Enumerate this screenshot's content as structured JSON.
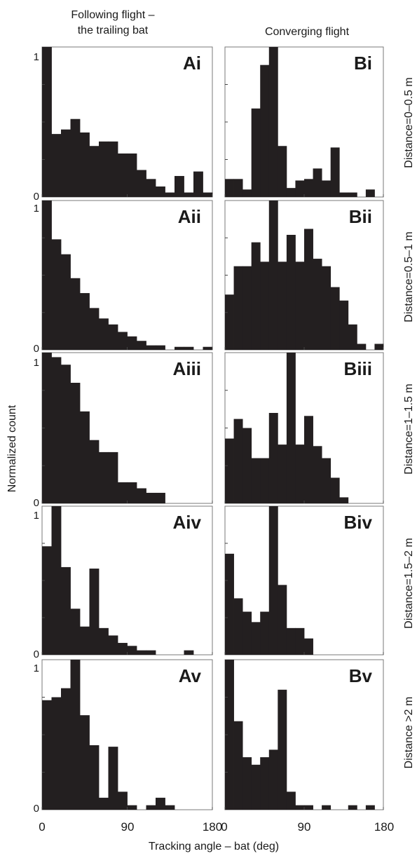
{
  "figure": {
    "col_headers": [
      [
        "Following flight –",
        "the trailing bat"
      ],
      [
        "Converging flight"
      ]
    ],
    "y_axis_label": "Normalized count",
    "x_axis_label": "Tracking angle – bat (deg)",
    "x_ticks": [
      "0",
      "90",
      "180"
    ],
    "y_ticks": [
      "0",
      "1"
    ],
    "row_labels": [
      "Distance=0–0.5 m",
      "Distance=0.5–1 m",
      "Distance=1–1.5 m",
      "Distance=1.5–2 m",
      "Distance >2 m"
    ],
    "colors": {
      "bar": "#231f20",
      "frame": "#7a7a7a"
    }
  },
  "chart_data": [
    {
      "type": "bar",
      "label": "Ai",
      "bin_width_deg": 10,
      "xlim": [
        0,
        180
      ],
      "ylim": [
        0,
        1
      ],
      "values": [
        1.0,
        0.42,
        0.45,
        0.52,
        0.43,
        0.34,
        0.37,
        0.37,
        0.29,
        0.29,
        0.18,
        0.12,
        0.07,
        0.03,
        0.14,
        0.03,
        0.17,
        0.03
      ]
    },
    {
      "type": "bar",
      "label": "Bi",
      "bin_width_deg": 10,
      "xlim": [
        0,
        180
      ],
      "ylim": [
        0,
        1
      ],
      "values": [
        0.12,
        0.12,
        0.05,
        0.59,
        0.88,
        1.0,
        0.34,
        0.06,
        0.11,
        0.12,
        0.19,
        0.11,
        0.33,
        0.03,
        0.03,
        0.0,
        0.05,
        0.0
      ]
    },
    {
      "type": "bar",
      "label": "Aii",
      "bin_width_deg": 10,
      "xlim": [
        0,
        180
      ],
      "ylim": [
        0,
        1
      ],
      "values": [
        1.0,
        0.74,
        0.64,
        0.48,
        0.38,
        0.28,
        0.21,
        0.17,
        0.12,
        0.09,
        0.06,
        0.03,
        0.03,
        0.0,
        0.02,
        0.02,
        0.0,
        0.02
      ]
    },
    {
      "type": "bar",
      "label": "Bii",
      "bin_width_deg": 10,
      "xlim": [
        0,
        180
      ],
      "ylim": [
        0,
        1
      ],
      "values": [
        0.37,
        0.56,
        0.56,
        0.72,
        0.59,
        1.0,
        0.59,
        0.77,
        0.59,
        0.81,
        0.61,
        0.56,
        0.42,
        0.33,
        0.17,
        0.04,
        0.0,
        0.04
      ]
    },
    {
      "type": "bar",
      "label": "Aiii",
      "bin_width_deg": 10,
      "xlim": [
        0,
        180
      ],
      "ylim": [
        0,
        1
      ],
      "values": [
        1.0,
        0.97,
        0.92,
        0.8,
        0.61,
        0.42,
        0.34,
        0.34,
        0.14,
        0.14,
        0.1,
        0.07,
        0.07,
        0.0,
        0.0,
        0.0,
        0.0,
        0.0
      ]
    },
    {
      "type": "bar",
      "label": "Biii",
      "bin_width_deg": 10,
      "xlim": [
        0,
        180
      ],
      "ylim": [
        0,
        1
      ],
      "values": [
        0.43,
        0.56,
        0.5,
        0.3,
        0.3,
        0.6,
        0.39,
        1.0,
        0.39,
        0.58,
        0.38,
        0.3,
        0.17,
        0.04,
        0.0,
        0.0,
        0.0,
        0.0
      ]
    },
    {
      "type": "bar",
      "label": "Aiv",
      "bin_width_deg": 10,
      "xlim": [
        0,
        180
      ],
      "ylim": [
        0,
        1
      ],
      "values": [
        0.73,
        1.0,
        0.59,
        0.31,
        0.19,
        0.58,
        0.18,
        0.13,
        0.08,
        0.06,
        0.03,
        0.03,
        0.0,
        0.0,
        0.0,
        0.03,
        0.0,
        0.0
      ]
    },
    {
      "type": "bar",
      "label": "Biv",
      "bin_width_deg": 10,
      "xlim": [
        0,
        180
      ],
      "ylim": [
        0,
        1
      ],
      "values": [
        0.68,
        0.38,
        0.29,
        0.22,
        0.29,
        1.0,
        0.47,
        0.18,
        0.18,
        0.11,
        0.0,
        0.0,
        0.0,
        0.0,
        0.0,
        0.0,
        0.0,
        0.0
      ]
    },
    {
      "type": "bar",
      "label": "Av",
      "bin_width_deg": 10,
      "xlim": [
        0,
        180
      ],
      "ylim": [
        0,
        1
      ],
      "values": [
        0.73,
        0.75,
        0.81,
        1.0,
        0.63,
        0.43,
        0.08,
        0.42,
        0.12,
        0.03,
        0.0,
        0.03,
        0.08,
        0.03,
        0.0,
        0.0,
        0.0,
        0.0
      ]
    },
    {
      "type": "bar",
      "label": "Bv",
      "bin_width_deg": 10,
      "xlim": [
        0,
        180
      ],
      "ylim": [
        0,
        1
      ],
      "values": [
        1.0,
        0.59,
        0.35,
        0.3,
        0.35,
        0.4,
        0.8,
        0.12,
        0.03,
        0.03,
        0.0,
        0.03,
        0.0,
        0.0,
        0.03,
        0.0,
        0.03,
        0.0
      ]
    }
  ]
}
